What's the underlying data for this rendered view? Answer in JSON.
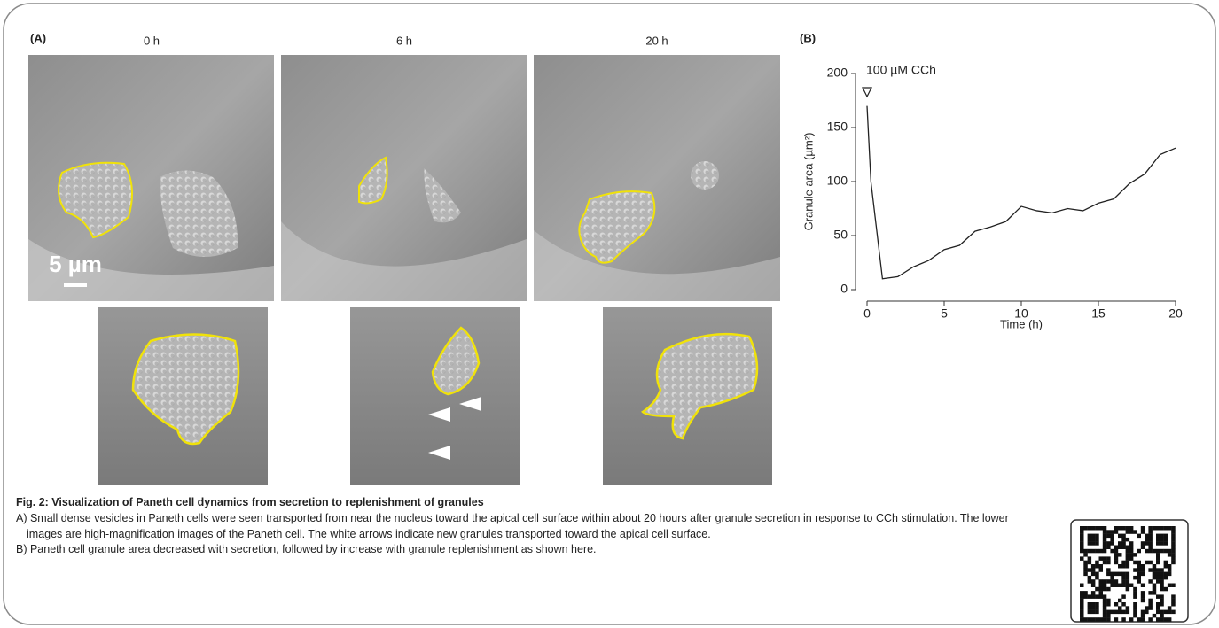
{
  "panel_a": {
    "label": "(A)",
    "time_labels": [
      "0 h",
      "6 h",
      "20 h"
    ],
    "scale_bar": "5 µm"
  },
  "chart_data": {
    "type": "line",
    "panel_label": "(B)",
    "x": [
      0,
      0.25,
      1,
      2,
      3,
      4,
      5,
      6,
      7,
      8,
      9,
      10,
      11,
      12,
      13,
      14,
      15,
      16,
      17,
      18,
      19,
      20
    ],
    "series": [
      {
        "color": "#222222",
        "values": [
          170,
          100,
          10,
          12,
          21,
          27,
          37,
          41,
          54,
          58,
          63,
          77,
          73,
          71,
          75,
          73,
          80,
          84,
          98,
          107,
          125,
          131
        ]
      }
    ],
    "xlim": [
      0,
      20
    ],
    "ylim": [
      0,
      200
    ],
    "xticks": [
      0,
      5,
      10,
      15,
      20
    ],
    "yticks": [
      0,
      50,
      100,
      150,
      200
    ],
    "xlabel": "Time (h)",
    "ylabel": "Granule area (µm²)",
    "annotation": {
      "text": "100 µM CCh",
      "x": 0
    }
  },
  "caption": {
    "title": "Fig. 2: Visualization of Paneth cell dynamics from secretion to replenishment of granules",
    "paragraphs": [
      "A) Small dense vesicles in Paneth cells were seen transported from near the nucleus toward the apical cell surface within about 20 hours after granule secretion in response to CCh stimulation. The lower images are high-magnification images of the Paneth cell. The white arrows indicate new granules transported toward the apical cell surface.",
      "B) Paneth cell granule area decreased with secretion, followed by increase with granule replenishment as shown here."
    ]
  }
}
